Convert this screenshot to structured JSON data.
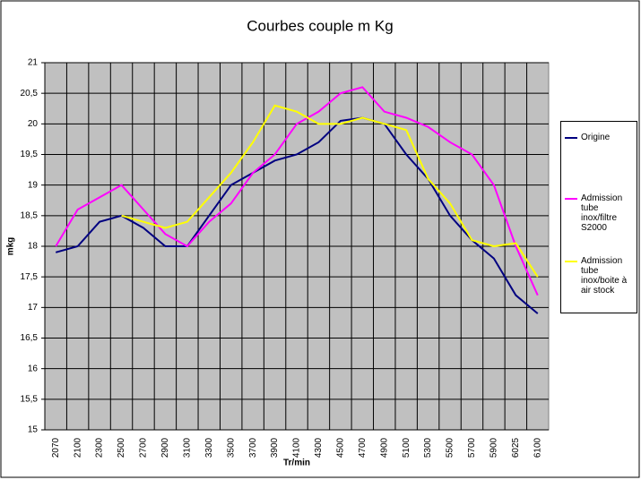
{
  "chart_data": {
    "type": "line",
    "title": "Courbes couple m Kg",
    "x_label": "Tr/min",
    "y_label": "mkg",
    "categories": [
      "2070",
      "2100",
      "2300",
      "2500",
      "2700",
      "2900",
      "3100",
      "3300",
      "3500",
      "3700",
      "3900",
      "4100",
      "4300",
      "4500",
      "4700",
      "4900",
      "5100",
      "5300",
      "5500",
      "5700",
      "5900",
      "6025",
      "6100"
    ],
    "series": [
      {
        "name": "Origine",
        "color": "#000080",
        "values": [
          17.9,
          18.0,
          18.4,
          18.5,
          18.3,
          18.0,
          18.0,
          18.5,
          19.0,
          19.2,
          19.4,
          19.5,
          19.7,
          20.05,
          20.1,
          20.0,
          19.5,
          19.1,
          18.5,
          18.1,
          17.8,
          17.2,
          16.9
        ]
      },
      {
        "name": "Admission tube inox/filtre S2000",
        "color": "#ff00ff",
        "values": [
          18.0,
          18.6,
          18.8,
          19.0,
          18.6,
          18.2,
          18.0,
          18.4,
          18.7,
          19.2,
          19.5,
          20.0,
          20.2,
          20.5,
          20.6,
          20.2,
          20.1,
          19.95,
          19.7,
          19.5,
          19.0,
          18.0,
          17.2
        ]
      },
      {
        "name": "Admission tube inox/boite à air stock",
        "color": "#ffff00",
        "values": [
          null,
          null,
          null,
          18.5,
          18.4,
          18.3,
          18.4,
          18.8,
          19.2,
          19.7,
          20.3,
          20.2,
          20.0,
          20.0,
          20.1,
          20.0,
          19.9,
          19.1,
          18.7,
          18.1,
          18.0,
          18.05,
          17.5
        ]
      }
    ],
    "ylim": [
      15,
      21
    ],
    "yticks": [
      15,
      {
        "value": 15.5,
        "label": "15,5"
      },
      16,
      {
        "value": 16.5,
        "label": "16,5"
      },
      17,
      {
        "value": 17.5,
        "label": "17,5"
      },
      18,
      {
        "value": 18.5,
        "label": "18,5"
      },
      19,
      {
        "value": 19.5,
        "label": "19,5"
      },
      20,
      {
        "value": 20.5,
        "label": "20,5"
      },
      21
    ],
    "grid": true,
    "legend": "right",
    "plot_background": "#c0c0c0"
  }
}
